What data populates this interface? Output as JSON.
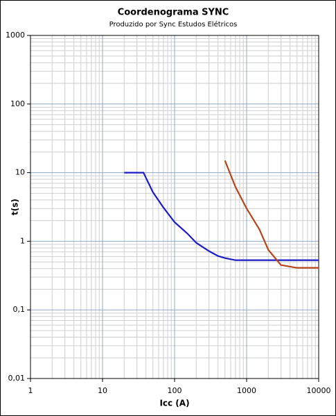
{
  "chart_data": {
    "type": "line",
    "title": "Coordenograma SYNC",
    "subtitle": "Produzido por Sync Estudos Elétricos",
    "x_label": "Icc (A)",
    "y_label": "t(s)",
    "xscale": "log",
    "yscale": "log",
    "grid": true,
    "minor_grid": true,
    "xlim": [
      1,
      10000
    ],
    "xticks": [
      1,
      10,
      100,
      1000,
      10000
    ],
    "ylim": [
      0.01,
      1000
    ],
    "yticks": [
      {
        "value": 0.01,
        "label": "0,01"
      },
      {
        "value": 0.1,
        "label": "0,1"
      },
      1,
      10,
      100,
      1000
    ],
    "series": [
      {
        "color": "#1c1cc4",
        "x": [
          20,
          37,
          50,
          70,
          100,
          150,
          200,
          300,
          400,
          500,
          700,
          10000
        ],
        "values": [
          10,
          10,
          5.2,
          3.1,
          1.9,
          1.3,
          0.95,
          0.72,
          0.61,
          0.57,
          0.53,
          0.53
        ]
      },
      {
        "color": "#b5451b",
        "x": [
          500,
          700,
          1000,
          1500,
          2000,
          3000,
          5000,
          10000
        ],
        "values": [
          15,
          6.2,
          3,
          1.5,
          0.75,
          0.45,
          0.41,
          0.41
        ]
      }
    ]
  }
}
